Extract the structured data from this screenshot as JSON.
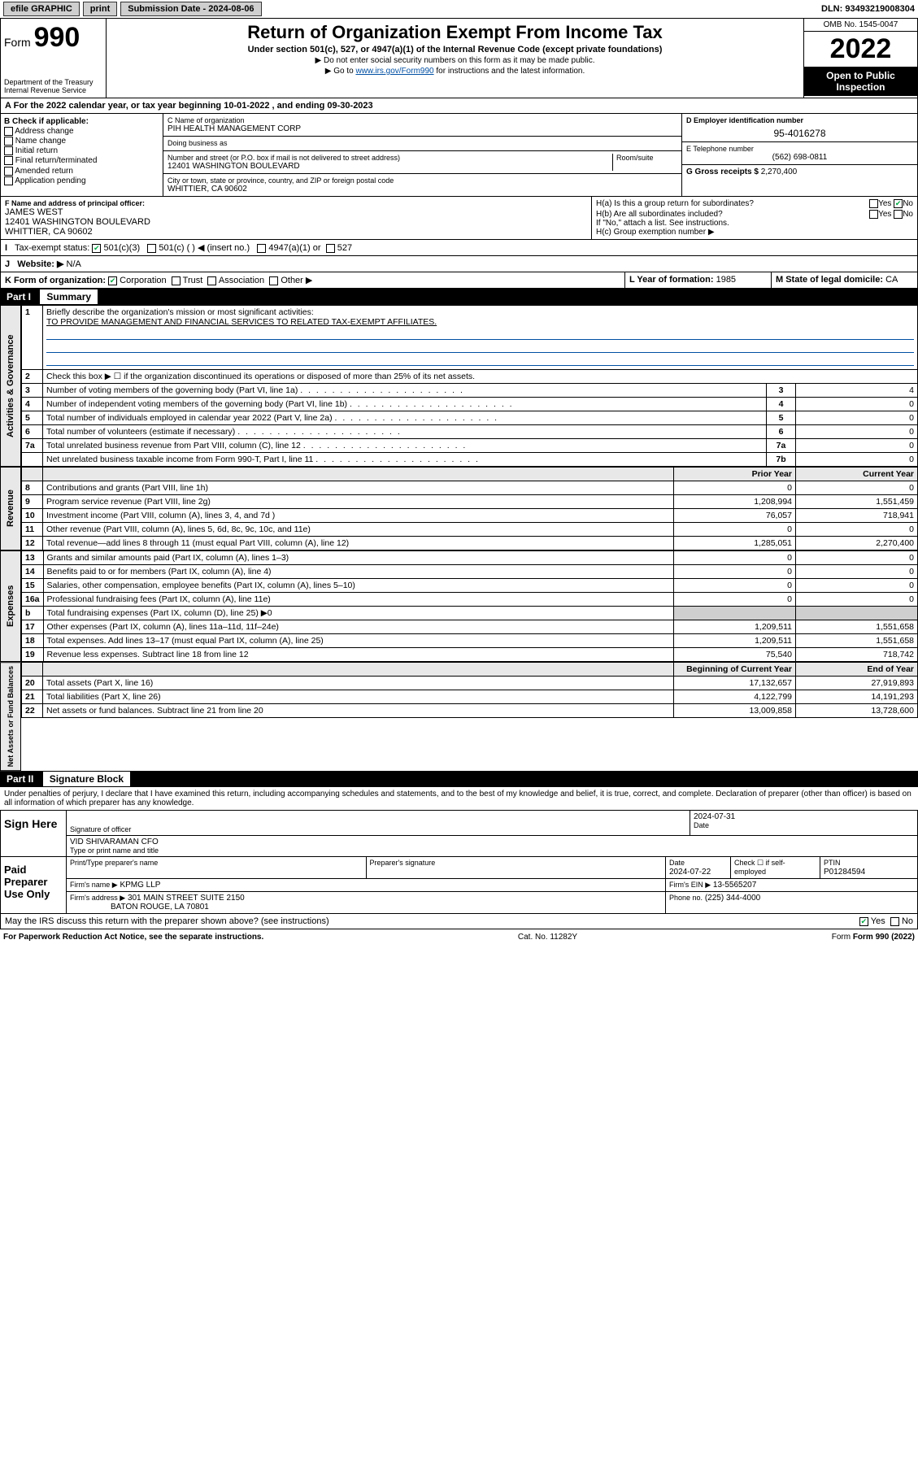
{
  "topbar": {
    "efile": "efile GRAPHIC",
    "print": "print",
    "sub_label": "Submission Date - ",
    "sub_date": "2024-08-06",
    "dln": "DLN: 93493219008304"
  },
  "header": {
    "form_word": "Form",
    "form_num": "990",
    "dept": "Department of the Treasury",
    "irs": "Internal Revenue Service",
    "title": "Return of Organization Exempt From Income Tax",
    "sub": "Under section 501(c), 527, or 4947(a)(1) of the Internal Revenue Code (except private foundations)",
    "note1": "▶ Do not enter social security numbers on this form as it may be made public.",
    "note2_pre": "▶ Go to ",
    "note2_link": "www.irs.gov/Form990",
    "note2_post": " for instructions and the latest information.",
    "omb": "OMB No. 1545-0047",
    "year": "2022",
    "open": "Open to Public Inspection"
  },
  "line_a": {
    "text_pre": "For the 2022 calendar year, or tax year beginning ",
    "begin": "10-01-2022",
    "mid": " , and ending ",
    "end": "09-30-2023"
  },
  "box_b": {
    "heading": "B Check if applicable:",
    "items": [
      "Address change",
      "Name change",
      "Initial return",
      "Final return/terminated",
      "Amended return",
      "Application pending"
    ]
  },
  "box_c": {
    "label_name": "C Name of organization",
    "name": "PIH HEALTH MANAGEMENT CORP",
    "dba_label": "Doing business as",
    "dba": "",
    "street_label": "Number and street (or P.O. box if mail is not delivered to street address)",
    "room_label": "Room/suite",
    "street": "12401 WASHINGTON BOULEVARD",
    "city_label": "City or town, state or province, country, and ZIP or foreign postal code",
    "city": "WHITTIER, CA  90602"
  },
  "box_d": {
    "label": "D Employer identification number",
    "value": "95-4016278"
  },
  "box_e": {
    "label": "E Telephone number",
    "value": "(562) 698-0811"
  },
  "box_g": {
    "label": "G Gross receipts $",
    "value": "2,270,400"
  },
  "box_f": {
    "label": "F Name and address of principal officer:",
    "name": "JAMES WEST",
    "addr1": "12401 WASHINGTON BOULEVARD",
    "addr2": "WHITTIER, CA  90602"
  },
  "box_h": {
    "ha": "H(a)  Is this a group return for subordinates?",
    "hb": "H(b)  Are all subordinates included?",
    "hb_note": "If \"No,\" attach a list. See instructions.",
    "hc": "H(c)  Group exemption number ▶",
    "yes": "Yes",
    "no": "No"
  },
  "box_i": {
    "label": "Tax-exempt status:",
    "opts": [
      "501(c)(3)",
      "501(c) (    ) ◀ (insert no.)",
      "4947(a)(1) or",
      "527"
    ]
  },
  "box_j": {
    "label": "Website: ▶",
    "value": "N/A"
  },
  "box_k": {
    "label": "K Form of organization:",
    "opts": [
      "Corporation",
      "Trust",
      "Association",
      "Other ▶"
    ]
  },
  "box_l": {
    "label": "L Year of formation:",
    "value": "1985"
  },
  "box_m": {
    "label": "M State of legal domicile:",
    "value": "CA"
  },
  "part1": {
    "label": "Part I",
    "title": "Summary"
  },
  "summary": {
    "line1_label": "Briefly describe the organization's mission or most significant activities:",
    "line1_text": "TO PROVIDE MANAGEMENT AND FINANCIAL SERVICES TO RELATED TAX-EXEMPT AFFILIATES.",
    "line2": "Check this box ▶ ☐  if the organization discontinued its operations or disposed of more than 25% of its net assets.",
    "gov_lines": [
      {
        "n": "3",
        "t": "Number of voting members of the governing body (Part VI, line 1a)",
        "b": "3",
        "v": "4"
      },
      {
        "n": "4",
        "t": "Number of independent voting members of the governing body (Part VI, line 1b)",
        "b": "4",
        "v": "0"
      },
      {
        "n": "5",
        "t": "Total number of individuals employed in calendar year 2022 (Part V, line 2a)",
        "b": "5",
        "v": "0"
      },
      {
        "n": "6",
        "t": "Total number of volunteers (estimate if necessary)",
        "b": "6",
        "v": "0"
      },
      {
        "n": "7a",
        "t": "Total unrelated business revenue from Part VIII, column (C), line 12",
        "b": "7a",
        "v": "0"
      },
      {
        "n": "",
        "t": "Net unrelated business taxable income from Form 990-T, Part I, line 11",
        "b": "7b",
        "v": "0"
      }
    ],
    "col_prior": "Prior Year",
    "col_current": "Current Year",
    "rev_lines": [
      {
        "n": "8",
        "t": "Contributions and grants (Part VIII, line 1h)",
        "p": "0",
        "c": "0"
      },
      {
        "n": "9",
        "t": "Program service revenue (Part VIII, line 2g)",
        "p": "1,208,994",
        "c": "1,551,459"
      },
      {
        "n": "10",
        "t": "Investment income (Part VIII, column (A), lines 3, 4, and 7d )",
        "p": "76,057",
        "c": "718,941"
      },
      {
        "n": "11",
        "t": "Other revenue (Part VIII, column (A), lines 5, 6d, 8c, 9c, 10c, and 11e)",
        "p": "0",
        "c": "0"
      },
      {
        "n": "12",
        "t": "Total revenue—add lines 8 through 11 (must equal Part VIII, column (A), line 12)",
        "p": "1,285,051",
        "c": "2,270,400"
      }
    ],
    "exp_lines": [
      {
        "n": "13",
        "t": "Grants and similar amounts paid (Part IX, column (A), lines 1–3)",
        "p": "0",
        "c": "0"
      },
      {
        "n": "14",
        "t": "Benefits paid to or for members (Part IX, column (A), line 4)",
        "p": "0",
        "c": "0"
      },
      {
        "n": "15",
        "t": "Salaries, other compensation, employee benefits (Part IX, column (A), lines 5–10)",
        "p": "0",
        "c": "0"
      },
      {
        "n": "16a",
        "t": "Professional fundraising fees (Part IX, column (A), line 11e)",
        "p": "0",
        "c": "0"
      },
      {
        "n": "b",
        "t": "Total fundraising expenses (Part IX, column (D), line 25) ▶0",
        "p": "",
        "c": ""
      },
      {
        "n": "17",
        "t": "Other expenses (Part IX, column (A), lines 11a–11d, 11f–24e)",
        "p": "1,209,511",
        "c": "1,551,658"
      },
      {
        "n": "18",
        "t": "Total expenses. Add lines 13–17 (must equal Part IX, column (A), line 25)",
        "p": "1,209,511",
        "c": "1,551,658"
      },
      {
        "n": "19",
        "t": "Revenue less expenses. Subtract line 18 from line 12",
        "p": "75,540",
        "c": "718,742"
      }
    ],
    "col_begin": "Beginning of Current Year",
    "col_end": "End of Year",
    "net_lines": [
      {
        "n": "20",
        "t": "Total assets (Part X, line 16)",
        "p": "17,132,657",
        "c": "27,919,893"
      },
      {
        "n": "21",
        "t": "Total liabilities (Part X, line 26)",
        "p": "4,122,799",
        "c": "14,191,293"
      },
      {
        "n": "22",
        "t": "Net assets or fund balances. Subtract line 21 from line 20",
        "p": "13,009,858",
        "c": "13,728,600"
      }
    ]
  },
  "vside": {
    "gov": "Activities & Governance",
    "rev": "Revenue",
    "exp": "Expenses",
    "net": "Net Assets or Fund Balances"
  },
  "part2": {
    "label": "Part II",
    "title": "Signature Block"
  },
  "sig_declar": "Under penalties of perjury, I declare that I have examined this return, including accompanying schedules and statements, and to the best of my knowledge and belief, it is true, correct, and complete. Declaration of preparer (other than officer) is based on all information of which preparer has any knowledge.",
  "sign": {
    "left": "Sign Here",
    "sig_label": "Signature of officer",
    "date_label": "Date",
    "date": "2024-07-31",
    "name": "VID SHIVARAMAN CFO",
    "name_label": "Type or print name and title"
  },
  "preparer": {
    "left": "Paid Preparer Use Only",
    "h1": "Print/Type preparer's name",
    "h2": "Preparer's signature",
    "h3": "Date",
    "date": "2024-07-22",
    "check_label": "Check ☐ if self-employed",
    "ptin_label": "PTIN",
    "ptin": "P01284594",
    "firm_label": "Firm's name   ▶",
    "firm": "KPMG LLP",
    "ein_label": "Firm's EIN ▶",
    "ein": "13-5565207",
    "addr_label": "Firm's address ▶",
    "addr1": "301 MAIN STREET SUITE 2150",
    "addr2": "BATON ROUGE, LA  70801",
    "phone_label": "Phone no.",
    "phone": "(225) 344-4000"
  },
  "may_irs": "May the IRS discuss this return with the preparer shown above? (see instructions)",
  "footer": {
    "pra": "For Paperwork Reduction Act Notice, see the separate instructions.",
    "cat": "Cat. No. 11282Y",
    "form": "Form 990 (2022)"
  }
}
